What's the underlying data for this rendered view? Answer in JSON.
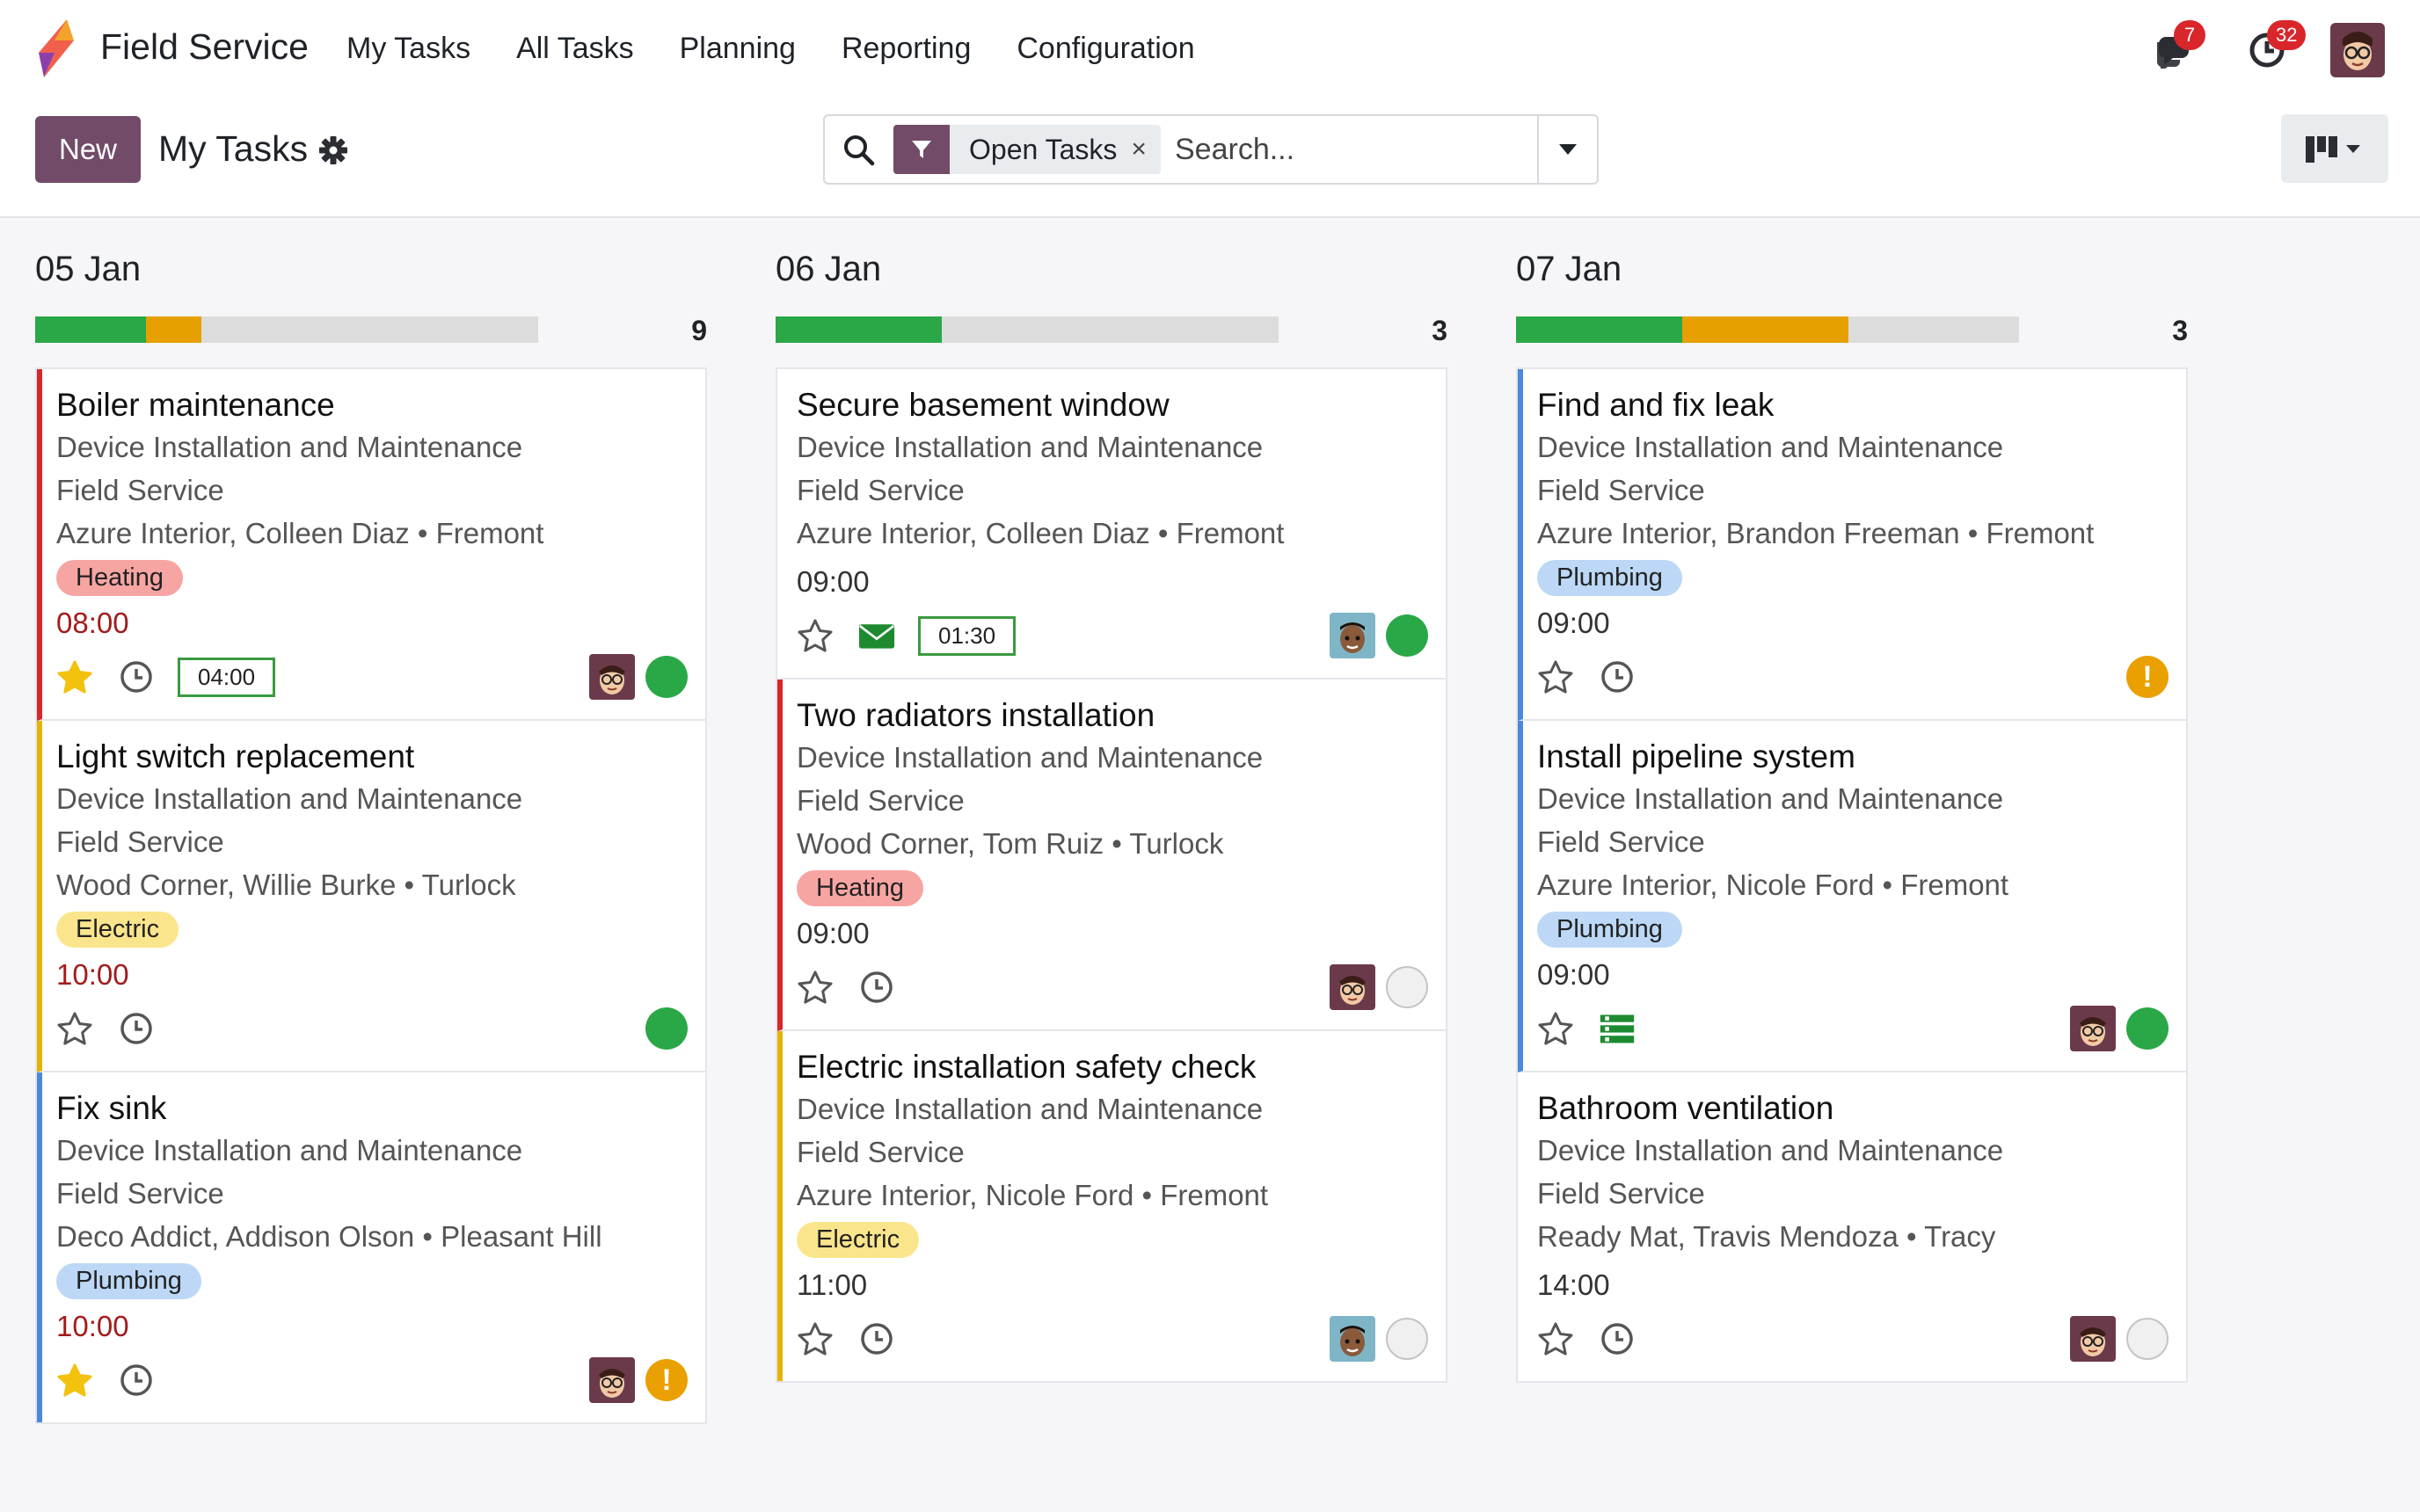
{
  "app": {
    "name": "Field Service",
    "menu": [
      "My Tasks",
      "All Tasks",
      "Planning",
      "Reporting",
      "Configuration"
    ],
    "messages_count": "7",
    "activities_count": "32"
  },
  "control": {
    "new_label": "New",
    "title": "My Tasks",
    "facet_label": "Open Tasks",
    "facet_remove": "×",
    "search_placeholder": "Search..."
  },
  "colors": {
    "brand": "#714b67",
    "done": "#2aa847",
    "progress_green": "#2aa847",
    "progress_orange": "#e6a000",
    "red_bar": "#d9262b",
    "yellow_bar": "#e6b400",
    "blue_bar": "#4a89dc"
  },
  "columns": [
    {
      "title": "05 Jan",
      "count": "9",
      "progress": {
        "green": 0.22,
        "orange": 0.11
      },
      "cards": [
        {
          "title": "Boiler maintenance",
          "project": "Device Installation and Maintenance",
          "app": "Field Service",
          "customer": "Azure Interior, Colleen Diaz • Fremont",
          "tag": "Heating",
          "time": "08:00",
          "late": true,
          "starred": true,
          "hours": "04:00",
          "avatar": "glasses",
          "status": "done",
          "bar": "red"
        },
        {
          "title": "Light switch replacement",
          "project": "Device Installation and Maintenance",
          "app": "Field Service",
          "customer": "Wood Corner, Willie Burke • Turlock",
          "tag": "Electric",
          "time": "10:00",
          "late": true,
          "starred": false,
          "hours": "",
          "avatar": "",
          "status": "done",
          "bar": "yellow"
        },
        {
          "title": "Fix sink",
          "project": "Device Installation and Maintenance",
          "app": "Field Service",
          "customer": "Deco Addict, Addison Olson • Pleasant Hill",
          "tag": "Plumbing",
          "time": "10:00",
          "late": true,
          "starred": true,
          "hours": "",
          "avatar": "glasses",
          "status": "warn",
          "bar": "blue"
        }
      ]
    },
    {
      "title": "06 Jan",
      "count": "3",
      "progress": {
        "green": 0.33,
        "orange": 0
      },
      "cards": [
        {
          "title": "Secure basement window",
          "project": "Device Installation and Maintenance",
          "app": "Field Service",
          "customer": "Azure Interior, Colleen Diaz • Fremont",
          "tag": "",
          "time": "09:00",
          "late": false,
          "starred": false,
          "mail": true,
          "hours": "01:30",
          "avatar": "dark",
          "status": "done",
          "bar": ""
        },
        {
          "title": "Two radiators installation",
          "project": "Device Installation and Maintenance",
          "app": "Field Service",
          "customer": "Wood Corner, Tom Ruiz • Turlock",
          "tag": "Heating",
          "time": "09:00",
          "late": false,
          "starred": false,
          "hours": "",
          "avatar": "glasses",
          "status": "normal",
          "bar": "red"
        },
        {
          "title": "Electric installation safety check",
          "project": "Device Installation and Maintenance",
          "app": "Field Service",
          "customer": "Azure Interior, Nicole Ford • Fremont",
          "tag": "Electric",
          "time": "11:00",
          "late": false,
          "starred": false,
          "hours": "",
          "avatar": "dark",
          "status": "normal",
          "bar": "yellow"
        }
      ]
    },
    {
      "title": "07 Jan",
      "count": "3",
      "progress": {
        "green": 0.33,
        "orange": 0.33
      },
      "cards": [
        {
          "title": "Find and fix leak",
          "project": "Device Installation and Maintenance",
          "app": "Field Service",
          "customer": "Azure Interior, Brandon Freeman • Fremont",
          "tag": "Plumbing",
          "time": "09:00",
          "late": false,
          "starred": false,
          "hours": "",
          "avatar": "",
          "status": "warn",
          "bar": "blue"
        },
        {
          "title": "Install pipeline system",
          "project": "Device Installation and Maintenance",
          "app": "Field Service",
          "customer": "Azure Interior, Nicole Ford • Fremont",
          "tag": "Plumbing",
          "time": "09:00",
          "late": false,
          "starred": false,
          "list": true,
          "hours": "",
          "avatar": "glasses",
          "status": "done",
          "bar": "blue"
        },
        {
          "title": "Bathroom ventilation",
          "project": "Device Installation and Maintenance",
          "app": "Field Service",
          "customer": "Ready Mat, Travis Mendoza • Tracy",
          "tag": "",
          "time": "14:00",
          "late": false,
          "starred": false,
          "hours": "",
          "avatar": "glasses",
          "status": "normal",
          "bar": ""
        }
      ]
    }
  ]
}
